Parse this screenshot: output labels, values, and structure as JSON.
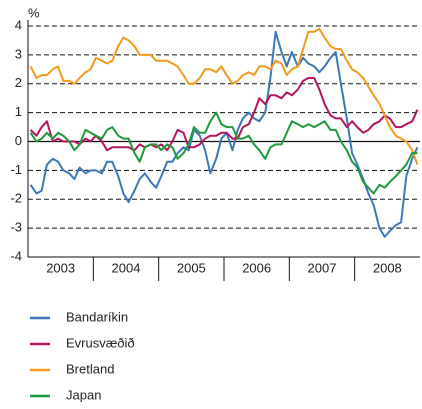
{
  "chart_data": {
    "type": "line",
    "y_label": "%",
    "x": [
      2003.04,
      2003.13,
      2003.21,
      2003.29,
      2003.38,
      2003.46,
      2003.54,
      2003.63,
      2003.71,
      2003.79,
      2003.88,
      2003.96,
      2004.04,
      2004.13,
      2004.21,
      2004.29,
      2004.38,
      2004.46,
      2004.54,
      2004.63,
      2004.71,
      2004.79,
      2004.88,
      2004.96,
      2005.04,
      2005.13,
      2005.21,
      2005.29,
      2005.38,
      2005.46,
      2005.54,
      2005.63,
      2005.71,
      2005.79,
      2005.88,
      2005.96,
      2006.04,
      2006.13,
      2006.21,
      2006.29,
      2006.38,
      2006.46,
      2006.54,
      2006.63,
      2006.71,
      2006.79,
      2006.88,
      2006.96,
      2007.04,
      2007.13,
      2007.21,
      2007.29,
      2007.38,
      2007.46,
      2007.54,
      2007.63,
      2007.71,
      2007.79,
      2007.88,
      2007.96,
      2008.04,
      2008.13,
      2008.21,
      2008.29,
      2008.38,
      2008.46,
      2008.54,
      2008.63,
      2008.71,
      2008.79,
      2008.88,
      2008.96
    ],
    "series": [
      {
        "name": "Bandaríkin",
        "color": "#3a78b8",
        "values": [
          -1.5,
          -1.8,
          -1.7,
          -0.8,
          -0.6,
          -0.7,
          -1.0,
          -1.1,
          -1.3,
          -0.9,
          -1.1,
          -1.0,
          -1.0,
          -1.1,
          -0.7,
          -0.7,
          -1.2,
          -1.8,
          -2.1,
          -1.7,
          -1.3,
          -1.1,
          -1.4,
          -1.6,
          -1.2,
          -0.7,
          -0.7,
          -0.4,
          -0.2,
          -0.3,
          0.4,
          0.2,
          -0.3,
          -1.1,
          -0.6,
          0.1,
          0.3,
          -0.3,
          0.4,
          0.8,
          1.0,
          0.8,
          0.7,
          1.0,
          2.2,
          3.8,
          3.1,
          2.6,
          3.1,
          2.6,
          2.9,
          2.7,
          2.6,
          2.4,
          2.6,
          2.9,
          3.1,
          2.0,
          0.8,
          -0.4,
          -0.8,
          -1.3,
          -1.8,
          -2.2,
          -3.0,
          -3.3,
          -3.1,
          -2.9,
          -2.8,
          -1.2,
          -0.6,
          -0.2
        ]
      },
      {
        "name": "Evrusvæðið",
        "color": "#b5145f",
        "values": [
          0.4,
          0.2,
          0.5,
          0.7,
          0.0,
          0.1,
          0.0,
          0.0,
          0.0,
          -0.1,
          0.1,
          0.0,
          0.2,
          0.0,
          -0.3,
          -0.2,
          -0.2,
          -0.2,
          -0.2,
          -0.3,
          -0.1,
          -0.2,
          -0.1,
          -0.2,
          -0.1,
          -0.3,
          0.0,
          0.4,
          0.3,
          -0.2,
          -0.2,
          -0.1,
          0.1,
          0.2,
          0.2,
          0.3,
          0.3,
          0.1,
          0.1,
          0.5,
          0.6,
          1.0,
          1.5,
          1.3,
          1.6,
          1.6,
          1.5,
          1.7,
          1.6,
          1.8,
          2.1,
          2.2,
          2.2,
          1.8,
          1.3,
          0.9,
          0.8,
          0.8,
          0.5,
          0.7,
          0.5,
          0.3,
          0.4,
          0.6,
          0.7,
          0.9,
          0.8,
          0.5,
          0.5,
          0.6,
          0.7,
          1.1
        ]
      },
      {
        "name": "Bretland",
        "color": "#f39a1e",
        "values": [
          2.6,
          2.2,
          2.3,
          2.3,
          2.5,
          2.6,
          2.1,
          2.1,
          2.0,
          2.2,
          2.4,
          2.5,
          2.9,
          2.8,
          2.7,
          2.8,
          3.3,
          3.6,
          3.5,
          3.3,
          3.0,
          3.0,
          3.0,
          2.8,
          2.8,
          2.8,
          2.7,
          2.6,
          2.3,
          2.0,
          2.0,
          2.2,
          2.5,
          2.5,
          2.4,
          2.6,
          2.3,
          2.0,
          2.1,
          2.3,
          2.4,
          2.3,
          2.6,
          2.6,
          2.5,
          2.8,
          2.7,
          2.3,
          2.5,
          2.6,
          3.2,
          3.8,
          3.8,
          3.9,
          3.6,
          3.3,
          3.2,
          3.2,
          2.8,
          2.5,
          2.4,
          2.2,
          1.9,
          1.6,
          1.3,
          0.9,
          0.5,
          0.2,
          0.1,
          0.0,
          -0.3,
          -0.8
        ]
      },
      {
        "name": "Japan",
        "color": "#1e9a3c",
        "values": [
          0.3,
          0.0,
          0.1,
          0.3,
          0.1,
          0.3,
          0.2,
          0.0,
          -0.3,
          -0.1,
          0.4,
          0.3,
          0.2,
          0.1,
          0.4,
          0.5,
          0.2,
          0.1,
          0.1,
          -0.4,
          -0.7,
          -0.2,
          -0.1,
          -0.1,
          -0.3,
          -0.1,
          -0.2,
          -0.6,
          -0.4,
          -0.1,
          0.5,
          0.3,
          0.3,
          0.7,
          1.0,
          0.6,
          0.5,
          0.5,
          0.1,
          0.1,
          0.2,
          -0.1,
          -0.3,
          -0.6,
          -0.2,
          -0.1,
          -0.1,
          0.3,
          0.7,
          0.6,
          0.5,
          0.6,
          0.5,
          0.6,
          0.7,
          0.4,
          0.4,
          0.0,
          -0.3,
          -0.7,
          -0.9,
          -1.4,
          -1.6,
          -1.8,
          -1.5,
          -1.6,
          -1.4,
          -1.2,
          -1.0,
          -0.8,
          -0.4,
          -0.4
        ]
      }
    ],
    "xlim": [
      2003,
      2009
    ],
    "xticks": [
      {
        "value": 2003.5,
        "label": "2003"
      },
      {
        "value": 2004.5,
        "label": "2004"
      },
      {
        "value": 2005.5,
        "label": "2005"
      },
      {
        "value": 2006.5,
        "label": "2006"
      },
      {
        "value": 2007.5,
        "label": "2007"
      },
      {
        "value": 2008.5,
        "label": "2008"
      }
    ],
    "xtick_marks": [
      2004,
      2005,
      2006,
      2007,
      2008
    ],
    "ylim": [
      -4,
      4
    ],
    "yticks": [
      -4,
      -3,
      -2,
      -1,
      0,
      1,
      2,
      3,
      4
    ],
    "grid": true
  }
}
